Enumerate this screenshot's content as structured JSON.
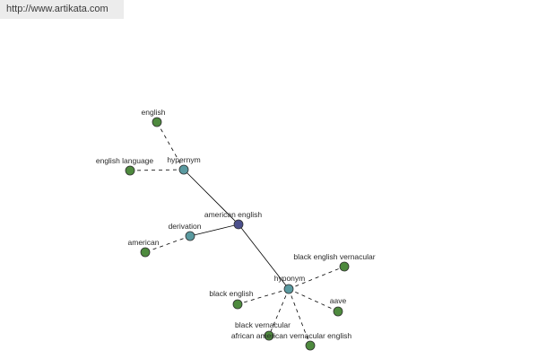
{
  "site_url": "http://www.artikata.com",
  "colors": {
    "banner_bg": "#ececec",
    "central_node": "#4b4f8c",
    "relation_node": "#5a9aa0",
    "word_node": "#4e8a3e"
  },
  "graph": {
    "center": {
      "id": "american-english",
      "label": "american english",
      "kind": "central"
    },
    "relations": [
      {
        "id": "hypernym",
        "label": "hypernym",
        "kind": "relation"
      },
      {
        "id": "derivation",
        "label": "derivation",
        "kind": "relation"
      },
      {
        "id": "hyponym",
        "label": "hyponym",
        "kind": "relation"
      }
    ],
    "words": [
      {
        "id": "english",
        "label": "english",
        "relation": "hypernym"
      },
      {
        "id": "english-language",
        "label": "english language",
        "relation": "hypernym"
      },
      {
        "id": "american",
        "label": "american",
        "relation": "derivation"
      },
      {
        "id": "black-english-vernacular",
        "label": "black english vernacular",
        "relation": "hyponym"
      },
      {
        "id": "black-english",
        "label": "black english",
        "relation": "hyponym"
      },
      {
        "id": "aave",
        "label": "aave",
        "relation": "hyponym"
      },
      {
        "id": "black-vernacular",
        "label": "black vernacular",
        "relation": "hyponym"
      },
      {
        "id": "african-american-vernacular-english",
        "label": "african american vernacular english",
        "relation": "hyponym"
      }
    ]
  }
}
